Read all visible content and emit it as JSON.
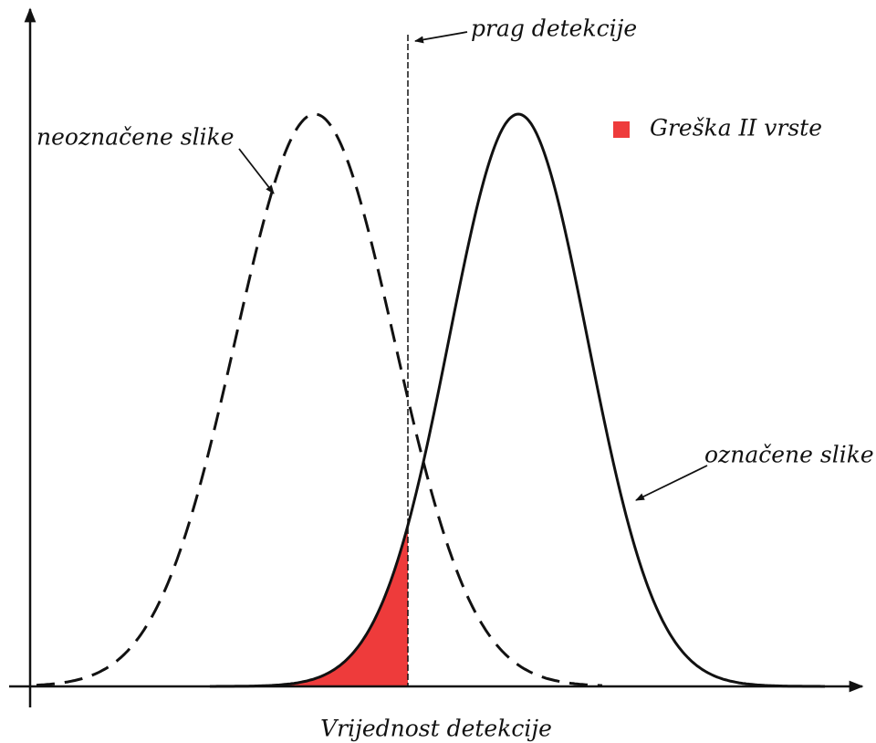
{
  "threshold_label": "prag detekcije",
  "negative_label": "neoznačene slike",
  "positive_label": "označene slike",
  "legend": {
    "label": "Greška II vrste"
  },
  "x_axis_label": "Vrijednost detekcije"
}
